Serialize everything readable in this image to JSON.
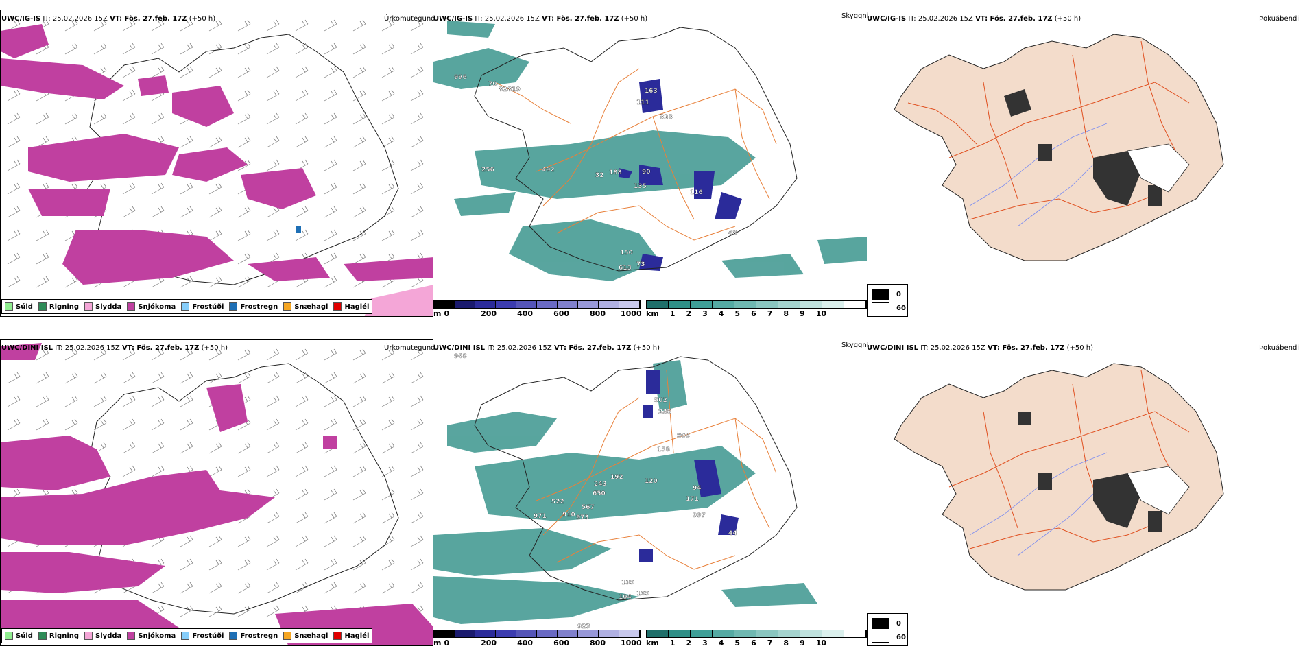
{
  "rows": [
    {
      "model": "UWC/IG-IS",
      "it": "IT: 25.02.2026 15Z",
      "vt": "VT: Fös. 27.feb. 17Z",
      "lead": "(+50 h)",
      "labels": {
        "precip": "Úrkomutegund",
        "cloud": "Skyggni",
        "fog": "Þokuábendi"
      },
      "cloud_values": [
        "996",
        "70",
        "82",
        "819",
        "163",
        "111",
        "328",
        "256",
        "492",
        "32",
        "188",
        "90",
        "135",
        "116",
        "48",
        "150",
        "613",
        "73"
      ]
    },
    {
      "model": "UWC/DINI ISL",
      "it": "IT: 25.02.2026 15Z",
      "vt": "VT: Fös. 27.feb. 17Z",
      "lead": "(+50 h)",
      "labels": {
        "precip": "Úrkomutegund",
        "cloud": "Skyggni",
        "fog": "Þokuábendi"
      },
      "cloud_values": [
        "968",
        "502",
        "236",
        "808",
        "158",
        "192",
        "243",
        "650",
        "120",
        "94",
        "171",
        "522",
        "567",
        "971",
        "910",
        "973",
        "997",
        "44",
        "135",
        "104",
        "165",
        "923"
      ]
    }
  ],
  "precip_legend": [
    {
      "label": "Súld",
      "color": "#90ee90"
    },
    {
      "label": "Rigning",
      "color": "#2e8b57"
    },
    {
      "label": "Slydda",
      "color": "#f4a6d7"
    },
    {
      "label": "Snjókoma",
      "color": "#c040a0"
    },
    {
      "label": "Frostúði",
      "color": "#87cefa"
    },
    {
      "label": "Frostregn",
      "color": "#1e6fb5"
    },
    {
      "label": "Snæhagl",
      "color": "#f5a623"
    },
    {
      "label": "Haglél",
      "color": "#e00000"
    }
  ],
  "ceiling_bar": {
    "unit": "m",
    "ticks": [
      "0",
      "200",
      "400",
      "600",
      "800",
      "1000"
    ]
  },
  "vis_bar": {
    "unit": "km",
    "ticks": [
      "1",
      "2",
      "3",
      "4",
      "5",
      "6",
      "7",
      "8",
      "9",
      "10"
    ]
  },
  "fog_legend": {
    "low": "0",
    "high": "60"
  },
  "colors": {
    "snow": "#c040a0",
    "cloud_low": "#2b2b9a",
    "vis": "#2f8f87",
    "land": "#f3dccb",
    "road": "#e8803a",
    "river": "#7b8cf0"
  }
}
